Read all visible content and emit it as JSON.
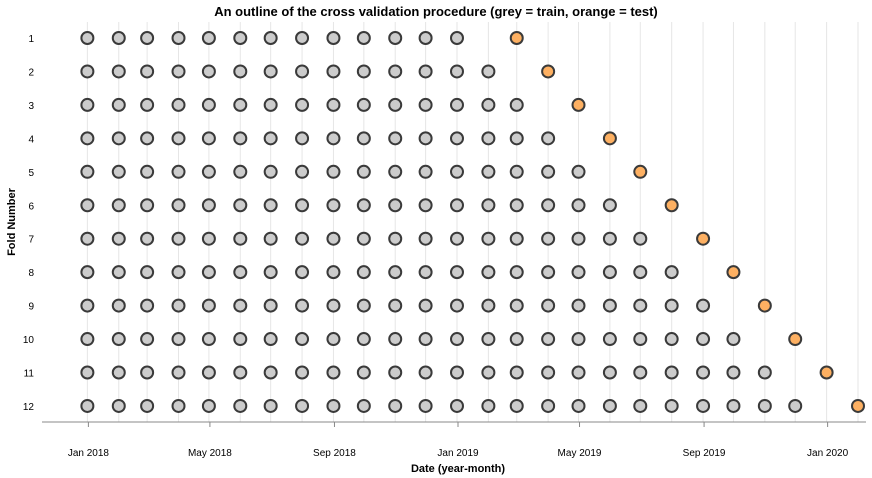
{
  "chart_data": {
    "type": "scatter",
    "title": "An outline of the cross validation procedure (grey = train, orange = test)",
    "xlabel": "Date (year-month)",
    "ylabel": "Fold Number",
    "x_axis": {
      "type": "date",
      "ticks": [
        {
          "date": "2018-01-01",
          "label": "Jan 2018"
        },
        {
          "date": "2018-05-01",
          "label": "May 2018"
        },
        {
          "date": "2018-09-01",
          "label": "Sep 2018"
        },
        {
          "date": "2019-01-01",
          "label": "Jan 2019"
        },
        {
          "date": "2019-05-01",
          "label": "May 2019"
        },
        {
          "date": "2019-09-01",
          "label": "Sep 2019"
        },
        {
          "date": "2020-01-01",
          "label": "Jan 2020"
        }
      ],
      "range": [
        "2017-12-01",
        "2020-01-31"
      ]
    },
    "y_axis": {
      "categories": [
        "1",
        "2",
        "3",
        "4",
        "5",
        "6",
        "7",
        "8",
        "9",
        "10",
        "11",
        "12"
      ]
    },
    "grid": true,
    "colors": {
      "train": "#cccccc",
      "test": "#fdb062",
      "stroke": "#3a3a3a"
    },
    "train_start": "2017-12-01",
    "series": [
      {
        "fold": "1",
        "train_end": "2018-12-31",
        "test": "2019-02-28"
      },
      {
        "fold": "2",
        "train_end": "2019-01-31",
        "test": "2019-03-31"
      },
      {
        "fold": "3",
        "train_end": "2019-02-28",
        "test": "2019-04-30"
      },
      {
        "fold": "4",
        "train_end": "2019-03-31",
        "test": "2019-05-31"
      },
      {
        "fold": "5",
        "train_end": "2019-04-30",
        "test": "2019-06-30"
      },
      {
        "fold": "6",
        "train_end": "2019-05-31",
        "test": "2019-07-31"
      },
      {
        "fold": "7",
        "train_end": "2019-06-30",
        "test": "2019-08-31"
      },
      {
        "fold": "8",
        "train_end": "2019-07-31",
        "test": "2019-09-30"
      },
      {
        "fold": "9",
        "train_end": "2019-08-31",
        "test": "2019-10-31"
      },
      {
        "fold": "10",
        "train_end": "2019-09-30",
        "test": "2019-11-30"
      },
      {
        "fold": "11",
        "train_end": "2019-10-31",
        "test": "2019-12-31"
      },
      {
        "fold": "12",
        "train_end": "2019-11-30",
        "test": "2020-01-31"
      }
    ]
  }
}
